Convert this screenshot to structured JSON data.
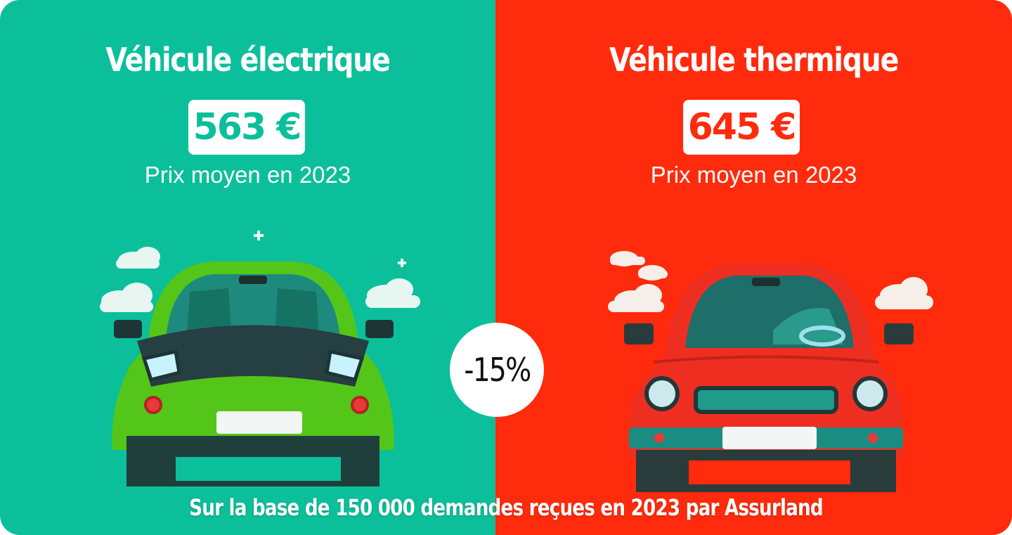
{
  "left": {
    "title": "Véhicule électrique",
    "price": "563 €",
    "subtitle": "Prix moyen en 2023",
    "color": "#0cbf9b",
    "car_icon": "electric-car-icon"
  },
  "right": {
    "title": "Véhicule thermique",
    "price": "645 €",
    "subtitle": "Prix moyen en 2023",
    "color": "#ff2b0c",
    "car_icon": "combustion-car-icon"
  },
  "badge": {
    "text": "-15%"
  },
  "footnote": "Sur la base de 150 000 demandes reçues en 2023 par Assurland"
}
